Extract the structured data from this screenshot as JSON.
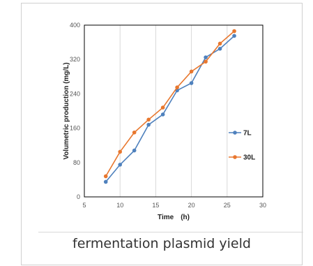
{
  "caption": "fermentation plasmid yield",
  "colors": {
    "series_7L": "#4f81bd",
    "series_30L": "#e8772e",
    "grid": "#d9d9d9",
    "axis": "#000000"
  },
  "chart_data": {
    "type": "line",
    "xlabel": "Time　(h)",
    "ylabel": "Volumetric production (mg/L)",
    "xlim": [
      5,
      30
    ],
    "ylim": [
      0,
      400
    ],
    "xticks": [
      5,
      10,
      15,
      20,
      25,
      30
    ],
    "yticks": [
      0,
      80,
      160,
      240,
      320,
      400
    ],
    "grid": "vertical",
    "legend": "right",
    "series": [
      {
        "name": "7L",
        "x": [
          8,
          10,
          12,
          14,
          16,
          18,
          20,
          22,
          24,
          26
        ],
        "y": [
          35,
          75,
          108,
          168,
          192,
          248,
          265,
          325,
          345,
          375
        ]
      },
      {
        "name": "30L",
        "x": [
          8,
          10,
          12,
          14,
          16,
          18,
          20,
          22,
          24,
          26
        ],
        "y": [
          48,
          105,
          150,
          180,
          208,
          255,
          292,
          315,
          357,
          386
        ]
      }
    ]
  }
}
